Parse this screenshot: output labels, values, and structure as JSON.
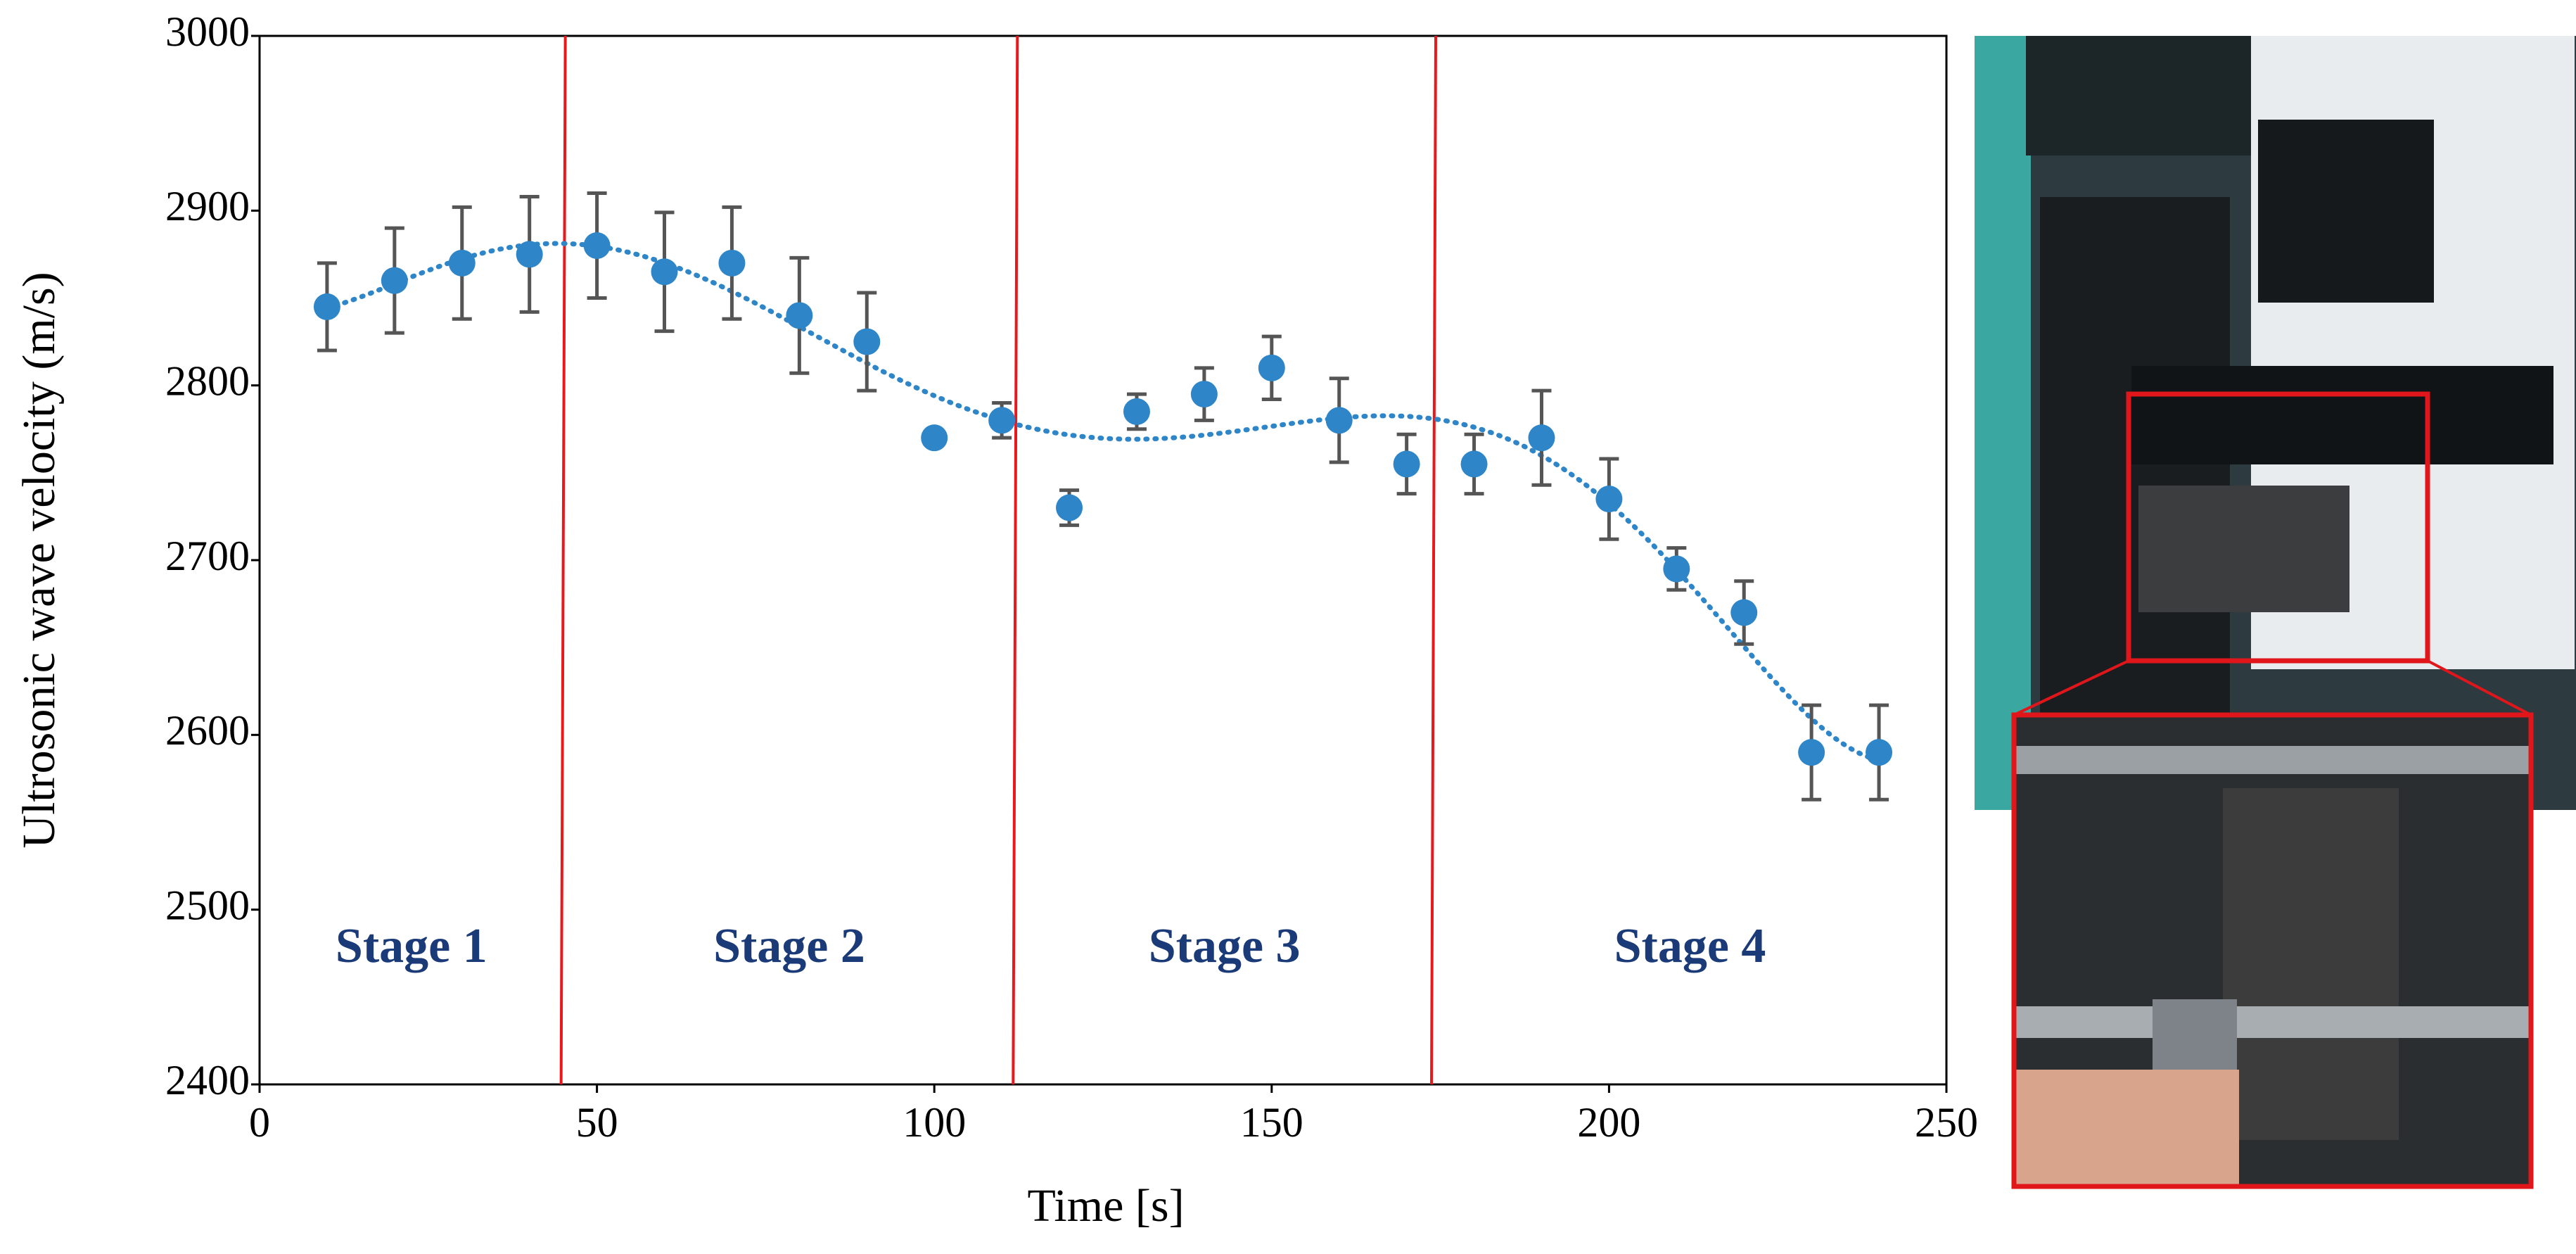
{
  "chart_data": {
    "type": "scatter",
    "xlabel": "Time [s]",
    "ylabel": "Ultrosonic wave velocity (m/s)",
    "x": [
      10,
      20,
      30,
      40,
      50,
      60,
      70,
      80,
      90,
      100,
      110,
      120,
      130,
      140,
      150,
      160,
      170,
      180,
      190,
      200,
      210,
      220,
      230,
      240
    ],
    "values": [
      2845,
      2860,
      2870,
      2875,
      2880,
      2865,
      2870,
      2840,
      2825,
      2770,
      2780,
      2730,
      2785,
      2795,
      2810,
      2780,
      2755,
      2755,
      2770,
      2735,
      2695,
      2670,
      2590,
      2590
    ],
    "errors": [
      25,
      30,
      32,
      33,
      30,
      34,
      32,
      33,
      28,
      3,
      10,
      10,
      10,
      15,
      18,
      24,
      17,
      17,
      27,
      23,
      12,
      18,
      27,
      27
    ],
    "color": "#2e86c8",
    "error_color": "#555555",
    "trendline": {
      "order": 6,
      "color": "#2e86c8"
    },
    "stages": {
      "boundaries": [
        45,
        112,
        174
      ],
      "labels": [
        "Stage 1",
        "Stage 2",
        "Stage 3",
        "Stage 4"
      ],
      "line_color": "#e8191c",
      "label_color": "#1b3a78"
    },
    "xlim": [
      0,
      250
    ],
    "ylim": [
      2400,
      3000
    ],
    "xticks": [
      0,
      50,
      100,
      150,
      200,
      250
    ],
    "yticks": [
      2400,
      2500,
      2600,
      2700,
      2800,
      2900,
      3000
    ]
  }
}
